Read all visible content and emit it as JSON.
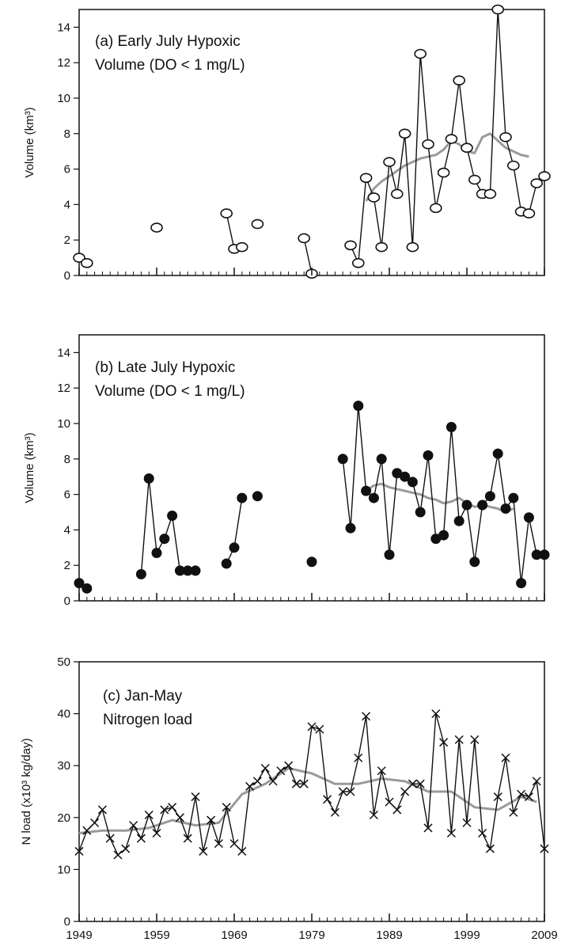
{
  "chart_data": [
    {
      "type": "line",
      "panel": "a",
      "title_line1": "(a) Early July Hypoxic",
      "title_line2": "Volume (DO < 1 mg/L)",
      "xlabel": "",
      "ylabel": "Volume (km³)",
      "xlim": [
        1949,
        2009
      ],
      "ylim": [
        0,
        15
      ],
      "yticks": [
        0,
        2,
        4,
        6,
        8,
        10,
        12,
        14
      ],
      "marker": "open-circle",
      "colors": {
        "series": "#111111",
        "smooth": "#9a9a9a"
      },
      "series": [
        {
          "x": [
            1949,
            1950
          ],
          "y": [
            1.0,
            0.7
          ]
        },
        {
          "x": [
            1959
          ],
          "y": [
            2.7
          ]
        },
        {
          "x": [
            1968,
            1969,
            1970
          ],
          "y": [
            3.5,
            1.5,
            1.6
          ]
        },
        {
          "x": [
            1972
          ],
          "y": [
            2.9
          ]
        },
        {
          "x": [
            1978,
            1979
          ],
          "y": [
            2.1,
            0.1
          ]
        },
        {
          "x": [
            1984,
            1985,
            1986,
            1987,
            1988,
            1989,
            1990,
            1991,
            1992,
            1993,
            1994,
            1995,
            1996,
            1997,
            1998,
            1999,
            2000,
            2001,
            2002,
            2003,
            2004,
            2005,
            2006,
            2007,
            2008,
            2009
          ],
          "y": [
            1.7,
            0.7,
            5.5,
            4.4,
            1.6,
            6.4,
            4.6,
            8.0,
            1.6,
            12.5,
            7.4,
            3.8,
            5.8,
            7.7,
            11.0,
            7.2,
            5.4,
            4.6,
            4.6,
            15.0,
            7.8,
            6.2,
            3.6,
            3.5,
            5.2,
            5.6
          ]
        }
      ],
      "smooth": {
        "x": [
          1986,
          1987,
          1988,
          1989,
          1990,
          1991,
          1992,
          1993,
          1994,
          1995,
          1996,
          1997,
          1998,
          1999,
          2000,
          2001,
          2002,
          2003,
          2004,
          2005,
          2006,
          2007
        ],
        "y": [
          4.2,
          4.9,
          5.3,
          5.6,
          5.9,
          6.2,
          6.4,
          6.6,
          6.7,
          6.8,
          7.1,
          7.6,
          7.4,
          7.0,
          6.9,
          7.8,
          8.0,
          7.6,
          7.2,
          7.0,
          6.8,
          6.7
        ]
      }
    },
    {
      "type": "line",
      "panel": "b",
      "title_line1": "(b) Late July Hypoxic",
      "title_line2": "Volume (DO < 1 mg/L)",
      "xlabel": "",
      "ylabel": "Volume (km³)",
      "xlim": [
        1949,
        2009
      ],
      "ylim": [
        0,
        15
      ],
      "yticks": [
        0,
        2,
        4,
        6,
        8,
        10,
        12,
        14
      ],
      "marker": "filled-circle",
      "colors": {
        "series": "#111111",
        "smooth": "#9a9a9a"
      },
      "series": [
        {
          "x": [
            1949,
            1950
          ],
          "y": [
            1.0,
            0.7
          ]
        },
        {
          "x": [
            1957,
            1958,
            1959,
            1960,
            1961,
            1962,
            1963,
            1964
          ],
          "y": [
            1.5,
            6.9,
            2.7,
            3.5,
            4.8,
            1.7,
            1.7,
            1.7
          ]
        },
        {
          "x": [
            1968,
            1969,
            1970
          ],
          "y": [
            2.1,
            3.0,
            5.8
          ]
        },
        {
          "x": [
            1972
          ],
          "y": [
            5.9
          ]
        },
        {
          "x": [
            1979
          ],
          "y": [
            2.2
          ]
        },
        {
          "x": [
            1983,
            1984,
            1985,
            1986,
            1987,
            1988,
            1989,
            1990,
            1991,
            1992,
            1993,
            1994,
            1995,
            1996,
            1997,
            1998,
            1999,
            2000,
            2001,
            2002,
            2003,
            2004,
            2005,
            2006,
            2007,
            2008,
            2009
          ],
          "y": [
            8.0,
            4.1,
            11.0,
            6.2,
            5.8,
            8.0,
            2.6,
            7.2,
            7.0,
            6.7,
            5.0,
            8.2,
            3.5,
            3.7,
            9.8,
            4.5,
            5.4,
            2.2,
            5.4,
            5.9,
            8.3,
            5.2,
            5.8,
            1.0,
            4.7,
            2.6,
            2.6
          ]
        }
      ],
      "smooth": {
        "x": [
          1986,
          1987,
          1988,
          1989,
          1990,
          1991,
          1992,
          1993,
          1994,
          1995,
          1996,
          1997,
          1998,
          1999,
          2000,
          2001,
          2002,
          2003,
          2004,
          2005
        ],
        "y": [
          6.2,
          6.5,
          6.6,
          6.4,
          6.3,
          6.2,
          6.1,
          6.0,
          5.8,
          5.7,
          5.5,
          5.6,
          5.8,
          5.5,
          5.3,
          5.4,
          5.3,
          5.2,
          5.0,
          5.2
        ]
      }
    },
    {
      "type": "line",
      "panel": "c",
      "title_line1": "(c) Jan-May",
      "title_line2": "Nitrogen load",
      "xlabel": "",
      "ylabel": "N load (x10³ kg/day)",
      "xlim": [
        1949,
        2009
      ],
      "ylim": [
        0,
        50
      ],
      "yticks": [
        0,
        10,
        20,
        30,
        40,
        50
      ],
      "xticks": [
        1949,
        1959,
        1969,
        1979,
        1989,
        1999,
        2009
      ],
      "marker": "cross",
      "colors": {
        "series": "#111111",
        "smooth": "#9a9a9a"
      },
      "series": [
        {
          "x": [
            1949,
            1950,
            1951,
            1952,
            1953,
            1954,
            1955,
            1956,
            1957,
            1958,
            1959,
            1960,
            1961,
            1962,
            1963,
            1964,
            1965,
            1966,
            1967,
            1968,
            1969,
            1970,
            1971,
            1972,
            1973,
            1974,
            1975,
            1976,
            1977,
            1978,
            1979,
            1980,
            1981,
            1982,
            1983,
            1984,
            1985,
            1986,
            1987,
            1988,
            1989,
            1990,
            1991,
            1992,
            1993,
            1994,
            1995,
            1996,
            1997,
            1998,
            1999,
            2000,
            2001,
            2002,
            2003,
            2004,
            2005,
            2006,
            2007,
            2008,
            2009
          ],
          "y": [
            13.5,
            17.5,
            19.0,
            21.5,
            16.0,
            12.8,
            14.0,
            18.5,
            16.0,
            20.5,
            17.0,
            21.5,
            22.0,
            20.0,
            16.0,
            24.0,
            13.5,
            19.5,
            15.0,
            22.0,
            15.0,
            13.5,
            26.0,
            27.0,
            29.5,
            27.0,
            29.0,
            30.0,
            26.5,
            26.5,
            37.5,
            37.0,
            23.5,
            21.0,
            25.0,
            25.0,
            31.5,
            39.5,
            20.5,
            29.0,
            23.0,
            21.5,
            25.0,
            26.5,
            26.5,
            18.0,
            40.0,
            34.5,
            17.0,
            35.0,
            19.0,
            35.0,
            17.0,
            14.0,
            24.0,
            31.5,
            21.0,
            24.5,
            24.0,
            27.0,
            14.0
          ]
        }
      ],
      "smooth": {
        "x": [
          1949,
          1952,
          1955,
          1958,
          1961,
          1964,
          1967,
          1970,
          1973,
          1976,
          1979,
          1982,
          1985,
          1988,
          1991,
          1994,
          1997,
          2000,
          2003,
          2006,
          2008
        ],
        "y": [
          17.0,
          17.5,
          17.5,
          18.0,
          19.5,
          18.5,
          19.0,
          24.5,
          26.5,
          29.5,
          28.5,
          26.5,
          26.5,
          27.5,
          27.0,
          25.0,
          25.0,
          22.0,
          21.5,
          24.0,
          23.0
        ]
      }
    }
  ]
}
